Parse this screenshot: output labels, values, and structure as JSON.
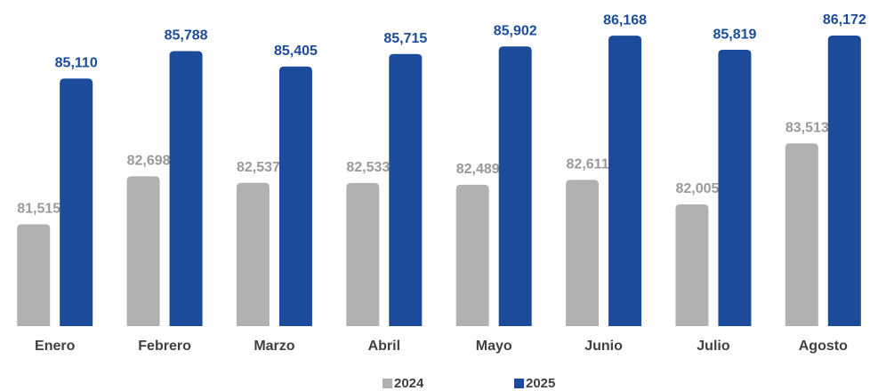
{
  "chart_data": {
    "type": "bar",
    "categories": [
      "Enero",
      "Febrero",
      "Marzo",
      "Abril",
      "Mayo",
      "Junio",
      "Julio",
      "Agosto"
    ],
    "series": [
      {
        "name": "2024",
        "color": "#b1b1b1",
        "label_color": "#9a9a9a",
        "values": [
          81515,
          82698,
          82537,
          82533,
          82489,
          82611,
          82005,
          83513
        ],
        "value_labels": [
          "81,515",
          "82,698",
          "82,537",
          "82,533",
          "82,489",
          "82,611",
          "82,005",
          "83,513"
        ]
      },
      {
        "name": "2025",
        "color": "#1c4b9b",
        "label_color": "#1c4b9b",
        "values": [
          85110,
          85788,
          85405,
          85715,
          85902,
          86168,
          85819,
          86172
        ],
        "value_labels": [
          "85,110",
          "85,788",
          "85,405",
          "85,715",
          "85,902",
          "86,168",
          "85,819",
          "86,172"
        ]
      }
    ],
    "ylim": [
      79000,
      86500
    ],
    "legend": "bottom"
  }
}
